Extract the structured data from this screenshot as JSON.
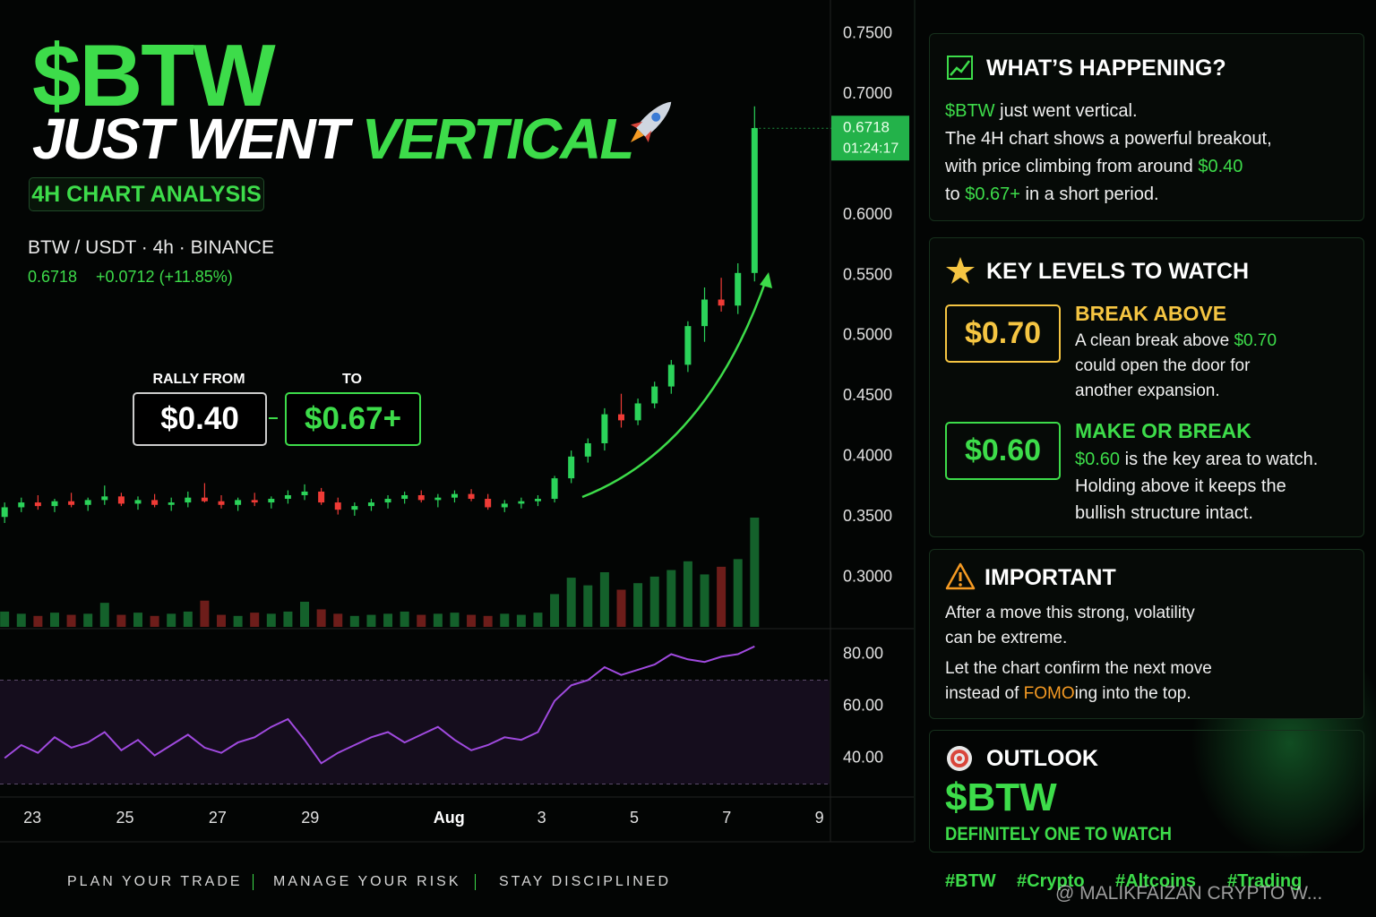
{
  "header": {
    "title": "$BTW",
    "line2": [
      "JUST WENT ",
      {
        "text": "VERTICAL",
        "color": "#3ddc4a"
      }
    ],
    "badge": "4H CHART ANALYSIS",
    "symbol": "BTW / USDT · 4h · BINANCE",
    "price": "0.6718",
    "change": "+0.0712 (+11.85%)"
  },
  "rally": {
    "from_label": "RALLY FROM",
    "from": "$0.40",
    "to_label": "TO",
    "to": "$0.67+"
  },
  "chart_data": {
    "type": "candlestick",
    "last_price": 0.6718,
    "countdown": "01:24:17",
    "up_color": "#2bd35a",
    "down_color": "#ef3b36",
    "x": [
      22.4,
      22.76,
      23.12,
      23.48,
      23.84,
      24.2,
      24.56,
      24.92,
      25.28,
      25.64,
      26,
      26.36,
      26.72,
      27.08,
      27.44,
      27.8,
      28.16,
      28.52,
      28.88,
      29.24,
      29.6,
      29.96,
      30.32,
      30.68,
      31.04,
      31.4,
      31.76,
      32.12,
      32.48,
      32.84,
      33.2,
      33.56,
      33.92,
      34.28,
      34.64,
      35,
      35.36,
      35.72,
      36.08,
      36.44,
      36.8,
      37.16,
      37.52,
      37.88,
      38.24,
      38.6
    ],
    "open": [
      0.35,
      0.358,
      0.362,
      0.359,
      0.363,
      0.36,
      0.364,
      0.367,
      0.361,
      0.364,
      0.36,
      0.362,
      0.366,
      0.363,
      0.36,
      0.364,
      0.362,
      0.365,
      0.368,
      0.371,
      0.362,
      0.356,
      0.359,
      0.362,
      0.365,
      0.368,
      0.364,
      0.366,
      0.369,
      0.365,
      0.358,
      0.361,
      0.363,
      0.365,
      0.382,
      0.4,
      0.411,
      0.435,
      0.43,
      0.444,
      0.458,
      0.476,
      0.508,
      0.53,
      0.525,
      0.552
    ],
    "high": [
      0.362,
      0.366,
      0.368,
      0.365,
      0.37,
      0.366,
      0.376,
      0.37,
      0.367,
      0.369,
      0.366,
      0.371,
      0.378,
      0.368,
      0.366,
      0.37,
      0.367,
      0.372,
      0.377,
      0.374,
      0.366,
      0.362,
      0.365,
      0.368,
      0.371,
      0.372,
      0.369,
      0.372,
      0.373,
      0.369,
      0.364,
      0.366,
      0.368,
      0.384,
      0.405,
      0.415,
      0.44,
      0.452,
      0.448,
      0.462,
      0.48,
      0.512,
      0.54,
      0.548,
      0.56,
      0.69
    ],
    "low": [
      0.345,
      0.354,
      0.356,
      0.354,
      0.358,
      0.355,
      0.36,
      0.359,
      0.356,
      0.358,
      0.355,
      0.358,
      0.362,
      0.357,
      0.355,
      0.359,
      0.357,
      0.361,
      0.364,
      0.36,
      0.352,
      0.351,
      0.355,
      0.357,
      0.361,
      0.362,
      0.358,
      0.362,
      0.363,
      0.356,
      0.354,
      0.357,
      0.359,
      0.362,
      0.378,
      0.395,
      0.405,
      0.424,
      0.426,
      0.44,
      0.452,
      0.47,
      0.495,
      0.52,
      0.518,
      0.545
    ],
    "close": [
      0.358,
      0.362,
      0.359,
      0.363,
      0.36,
      0.364,
      0.367,
      0.361,
      0.364,
      0.36,
      0.362,
      0.366,
      0.363,
      0.36,
      0.364,
      0.362,
      0.365,
      0.368,
      0.371,
      0.362,
      0.356,
      0.359,
      0.362,
      0.365,
      0.368,
      0.364,
      0.366,
      0.369,
      0.365,
      0.358,
      0.361,
      0.363,
      0.365,
      0.382,
      0.4,
      0.411,
      0.435,
      0.43,
      0.444,
      0.458,
      0.476,
      0.508,
      0.53,
      0.525,
      0.552,
      0.672
    ],
    "volume": [
      14,
      12,
      10,
      13,
      11,
      12,
      22,
      11,
      13,
      10,
      12,
      14,
      24,
      11,
      10,
      13,
      12,
      14,
      23,
      16,
      12,
      10,
      11,
      12,
      14,
      11,
      12,
      13,
      11,
      10,
      12,
      11,
      13,
      30,
      45,
      38,
      50,
      34,
      40,
      46,
      52,
      60,
      48,
      55,
      62,
      100
    ],
    "xlim": [
      22.3,
      40.2
    ],
    "xticks": [
      23,
      25,
      27,
      29,
      {
        "value": 32,
        "label": "Aug"
      },
      {
        "value": 34,
        "label": "3"
      },
      {
        "value": 36,
        "label": "5"
      },
      {
        "value": 38,
        "label": "7"
      },
      {
        "value": 40,
        "label": "9"
      }
    ],
    "ylim": [
      0.259,
      0.778
    ],
    "yticks": [
      {
        "value": 0.75,
        "label": "0.7500"
      },
      {
        "value": 0.7,
        "label": "0.7000"
      },
      {
        "value": 0.6,
        "label": "0.6000"
      },
      {
        "value": 0.55,
        "label": "0.5500"
      },
      {
        "value": 0.5,
        "label": "0.5000"
      },
      {
        "value": 0.45,
        "label": "0.4500"
      },
      {
        "value": 0.4,
        "label": "0.4000"
      },
      {
        "value": 0.35,
        "label": "0.3500"
      },
      {
        "value": 0.3,
        "label": "0.3000"
      }
    ],
    "rsi": {
      "color": "#a04adf",
      "values": [
        40,
        45,
        42,
        48,
        44,
        46,
        50,
        43,
        47,
        41,
        45,
        49,
        44,
        42,
        46,
        48,
        52,
        55,
        47,
        38,
        42,
        45,
        48,
        50,
        46,
        49,
        52,
        47,
        43,
        45,
        48,
        47,
        50,
        62,
        68,
        70,
        75,
        72,
        74,
        76,
        80,
        78,
        77,
        79,
        80,
        83
      ],
      "ylim": [
        25,
        85
      ],
      "yticks": [
        {
          "value": 80,
          "label": "80.00"
        },
        {
          "value": 60,
          "label": "60.00"
        },
        {
          "value": 40,
          "label": "40.00"
        }
      ],
      "overbought": 70,
      "oversold": 30
    }
  },
  "panels": [
    {
      "title": "WHAT’S HAPPENING?",
      "paragraphs": [
        [
          [
            {
              "text": "$BTW",
              "color": "#3ddc4a"
            },
            " just went vertical."
          ],
          [
            "The 4H chart shows a powerful breakout,"
          ],
          [
            "with price climbing from around ",
            {
              "text": "$0.40",
              "color": "#3ddc4a"
            }
          ],
          [
            "to ",
            {
              "text": "$0.67+",
              "color": "#3ddc4a"
            },
            " in a short period."
          ]
        ]
      ]
    },
    {
      "title": "KEY LEVELS TO WATCH",
      "levels": [
        {
          "price": "$0.70",
          "color": "#f5c542",
          "heading": "BREAK ABOVE",
          "paragraphs": [
            [
              [
                "A clean break above ",
                {
                  "text": "$0.70",
                  "color": "#3ddc4a"
                }
              ],
              [
                "could open the door for"
              ],
              [
                "another expansion."
              ]
            ]
          ]
        },
        {
          "price": "$0.60",
          "color": "#3ddc4a",
          "heading": "MAKE OR BREAK",
          "paragraphs": [
            [
              [
                {
                  "text": "$0.60",
                  "color": "#3ddc4a"
                },
                " is the key area to watch."
              ],
              [
                "Holding above it keeps the"
              ],
              [
                "bullish structure intact."
              ]
            ]
          ]
        }
      ]
    },
    {
      "title": "IMPORTANT",
      "paragraphs": [
        [
          [
            "After a move this strong, volatility"
          ],
          [
            "can be extreme."
          ]
        ],
        [
          [
            "Let the chart confirm the next move"
          ],
          [
            "instead of ",
            {
              "text": "FOMO",
              "color": "#f59a23"
            },
            "ing into the top."
          ]
        ]
      ]
    },
    {
      "title": "OUTLOOK",
      "headline": "$BTW",
      "tagline": "DEFINITELY ONE TO WATCH"
    }
  ],
  "footer": {
    "mottos": [
      "PLAN YOUR TRADE",
      "MANAGE YOUR RISK",
      "STAY DISCIPLINED"
    ],
    "hashtags": [
      "#BTW",
      "#Crypto",
      "#Altcoins",
      "#Trading"
    ],
    "watermark": "@ MALIKFAIZAN CRYPTO W..."
  }
}
